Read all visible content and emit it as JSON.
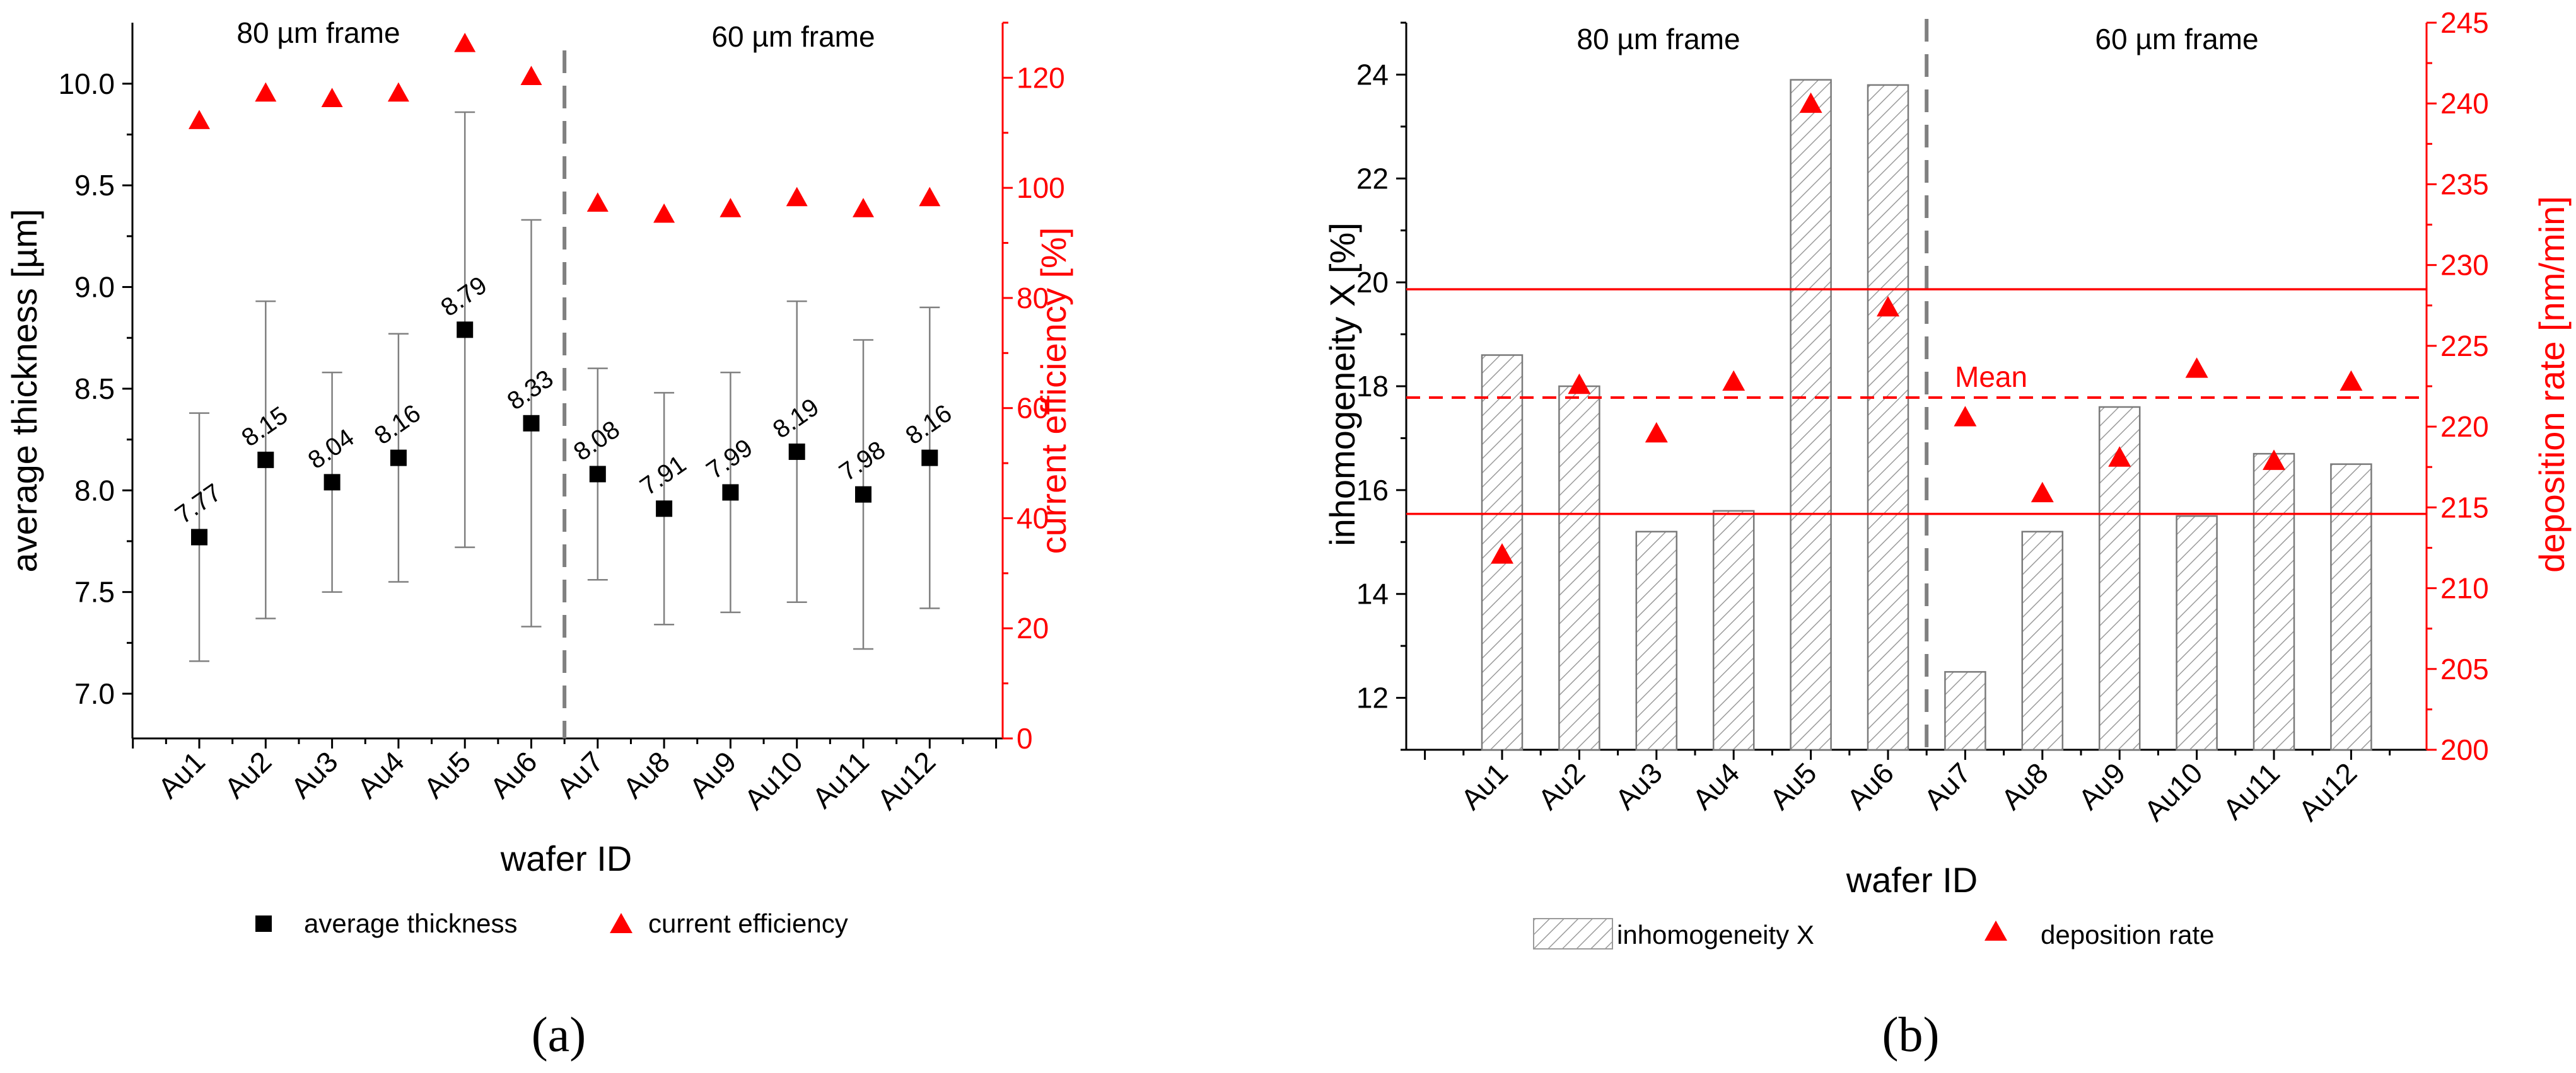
{
  "colors": {
    "red": "#ff0000",
    "black": "#000000",
    "grid": "#808080",
    "bar_stroke": "#7a7a7a",
    "divider": "#808080"
  },
  "chart_data": [
    {
      "panel": "(a)",
      "type": "scatter",
      "categories": [
        "Au1",
        "Au2",
        "Au3",
        "Au4",
        "Au5",
        "Au6",
        "Au7",
        "Au8",
        "Au9",
        "Au10",
        "Au11",
        "Au12"
      ],
      "xlabel": "wafer ID",
      "ylabel": "average thickness [µm]",
      "ylabel_right": "current efficiency [%]",
      "ylim": [
        6.78,
        10.3
      ],
      "ylim_right": [
        0,
        130
      ],
      "yticks": [
        "7.0",
        "7.5",
        "8.0",
        "8.5",
        "9.0",
        "9.5",
        "10.0"
      ],
      "yticks_right": [
        "0",
        "20",
        "40",
        "60",
        "80",
        "100",
        "120"
      ],
      "regions": [
        "80 µm frame",
        "60 µm frame"
      ],
      "series": [
        {
          "name": "average thickness",
          "axis": "left",
          "marker": "square",
          "values": [
            7.77,
            8.15,
            8.04,
            8.16,
            8.79,
            8.33,
            8.08,
            7.91,
            7.99,
            8.19,
            7.98,
            8.16
          ],
          "labels": [
            "7.77",
            "8.15",
            "8.04",
            "8.16",
            "8.79",
            "8.33",
            "8.08",
            "7.91",
            "7.99",
            "8.19",
            "7.98",
            "8.16"
          ],
          "err_low": [
            7.16,
            7.37,
            7.5,
            7.55,
            7.72,
            7.33,
            7.56,
            7.34,
            7.4,
            7.45,
            7.22,
            7.42
          ],
          "err_high": [
            8.38,
            8.93,
            8.58,
            8.77,
            9.86,
            9.33,
            8.6,
            8.48,
            8.58,
            8.93,
            8.74,
            8.9
          ]
        },
        {
          "name": "current efficiency",
          "axis": "right",
          "marker": "triangle",
          "values": [
            112,
            117,
            116,
            117,
            126,
            120,
            97,
            95,
            96,
            98,
            96,
            98
          ]
        }
      ]
    },
    {
      "panel": "(b)",
      "type": "bar",
      "categories": [
        "Au1",
        "Au2",
        "Au3",
        "Au4",
        "Au5",
        "Au6",
        "Au7",
        "Au8",
        "Au9",
        "Au10",
        "Au11",
        "Au12"
      ],
      "xlabel": "wafer ID",
      "ylabel": "inhomogeneity X [%]",
      "ylabel_right": "deposition rate [nm/min]",
      "ylim": [
        11,
        25
      ],
      "ylim_right": [
        200,
        245
      ],
      "yticks": [
        "12",
        "14",
        "16",
        "18",
        "20",
        "22",
        "24"
      ],
      "yticks_right": [
        "200",
        "205",
        "210",
        "215",
        "220",
        "225",
        "230",
        "235",
        "240",
        "245"
      ],
      "regions": [
        "80 µm frame",
        "60 µm frame"
      ],
      "mean_label": "Mean",
      "mean_line": 221.8,
      "bounds": [
        214.6,
        228.5
      ],
      "series": [
        {
          "name": "inhomogeneity X",
          "axis": "left",
          "marker": "hatched-bar",
          "values": [
            18.6,
            18.0,
            15.2,
            15.6,
            23.9,
            23.8,
            12.5,
            15.2,
            17.6,
            15.5,
            16.7,
            16.5
          ]
        },
        {
          "name": "deposition rate",
          "axis": "right",
          "marker": "triangle",
          "values": [
            212.0,
            222.5,
            219.5,
            222.7,
            239.9,
            227.3,
            220.5,
            215.8,
            218.0,
            223.5,
            217.8,
            222.7
          ]
        }
      ]
    }
  ]
}
